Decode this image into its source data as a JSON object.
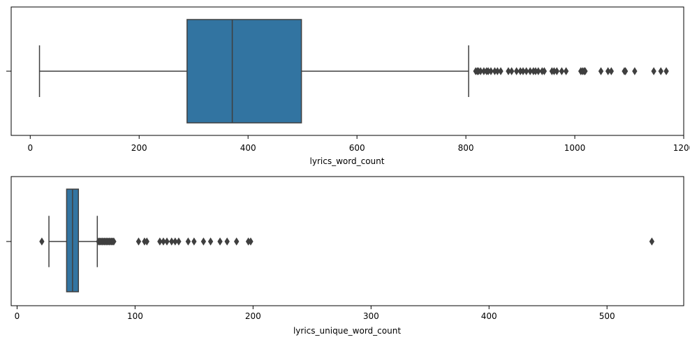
{
  "chart_data": [
    {
      "type": "boxplot",
      "orientation": "horizontal",
      "xlabel": "lyrics_word_count",
      "xlim": [
        -35,
        1200
      ],
      "xticks": [
        0,
        200,
        400,
        600,
        800,
        1000,
        1200
      ],
      "box": {
        "whisker_low": 17,
        "q1": 288,
        "median": 371,
        "q3": 498,
        "whisker_high": 805
      },
      "outliers": [
        818,
        821,
        823,
        827,
        833,
        838,
        841,
        846,
        853,
        858,
        864,
        878,
        884,
        893,
        900,
        905,
        911,
        918,
        924,
        928,
        933,
        940,
        944,
        958,
        962,
        967,
        976,
        984,
        1011,
        1014,
        1017,
        1019,
        1048,
        1061,
        1067,
        1091,
        1093,
        1110,
        1145,
        1158,
        1168
      ]
    },
    {
      "type": "boxplot",
      "orientation": "horizontal",
      "xlabel": "lyrics_unique_word_count",
      "xlim": [
        -5,
        565
      ],
      "xticks": [
        0,
        100,
        200,
        300,
        400,
        500
      ],
      "box": {
        "whisker_low": 27,
        "q1": 42,
        "median": 47,
        "q3": 52,
        "whisker_high": 68
      },
      "outliers": [
        21,
        69,
        70,
        71,
        72,
        73,
        74,
        75,
        76,
        77,
        78,
        79,
        80,
        81,
        82,
        103,
        108,
        110,
        121,
        124,
        127,
        131,
        134,
        137,
        145,
        150,
        158,
        164,
        172,
        178,
        186,
        196,
        198,
        538
      ]
    }
  ],
  "colors": {
    "box_fill": "#3274a1",
    "line": "#3f3f3f",
    "outlier": "#3f3f3f"
  }
}
